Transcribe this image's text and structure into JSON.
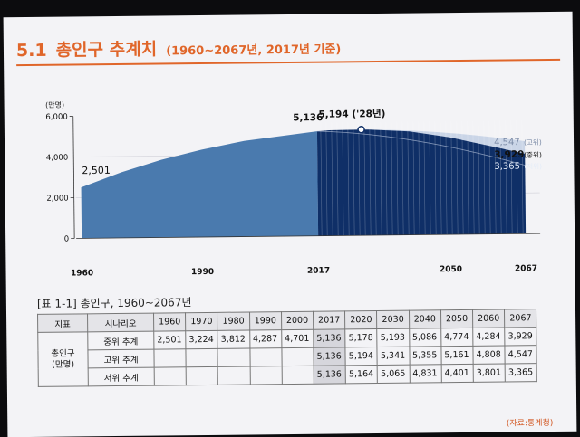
{
  "title": {
    "number": "5.1",
    "main": "총인구 추계치",
    "sub": "(1960~2067년, 2017년 기준)"
  },
  "chart_data": {
    "type": "area",
    "ylabel": "(만명)",
    "ylim": [
      0,
      6000
    ],
    "yticks": [
      "0",
      "2,000",
      "4,000",
      "6,000"
    ],
    "x_tick_labels": [
      "1960",
      "1990",
      "2017",
      "2050",
      "2067"
    ],
    "historical": {
      "x": [
        1960,
        1970,
        1980,
        1990,
        2000,
        2010,
        2017
      ],
      "y": [
        2501,
        3224,
        3812,
        4287,
        4701,
        4955,
        5136
      ]
    },
    "projection": {
      "x": [
        2017,
        2020,
        2028,
        2030,
        2040,
        2050,
        2060,
        2067
      ],
      "y": [
        5136,
        5178,
        5194,
        5193,
        5086,
        4774,
        4284,
        3929
      ]
    },
    "high_end": 4547,
    "low_end": 3365,
    "colors": {
      "historical": "#4a7aae",
      "projection": "#0f2f67",
      "peak_marker": "#0f2f67"
    },
    "annotations": {
      "start": "2,501",
      "y2017": "5,136",
      "peak": "5,194 ('28년)",
      "high": "4,547",
      "high_tag": "(고위)",
      "mid": "3,929",
      "mid_tag": "(중위)",
      "low": "3,365",
      "low_tag": "(저위)"
    }
  },
  "table": {
    "caption": "[표 1-1] 총인구, 1960~2067년",
    "header_indicator": "지표",
    "header_scenario": "시나리오",
    "years": [
      "1960",
      "1970",
      "1980",
      "1990",
      "2000",
      "2017",
      "2020",
      "2030",
      "2040",
      "2050",
      "2060",
      "2067"
    ],
    "indicator_label": "총인구\n(만명)",
    "rows": [
      {
        "scenario": "중위 추계",
        "values": [
          "2,501",
          "3,224",
          "3,812",
          "4,287",
          "4,701",
          "5,136",
          "5,178",
          "5,193",
          "5,086",
          "4,774",
          "4,284",
          "3,929"
        ]
      },
      {
        "scenario": "고위 추계",
        "values": [
          "",
          "",
          "",
          "",
          "",
          "5,136",
          "5,194",
          "5,341",
          "5,355",
          "5,161",
          "4,808",
          "4,547"
        ]
      },
      {
        "scenario": "저위 추계",
        "values": [
          "",
          "",
          "",
          "",
          "",
          "5,136",
          "5,164",
          "5,065",
          "4,831",
          "4,401",
          "3,801",
          "3,365"
        ]
      }
    ]
  },
  "source": "(자료:통계청)"
}
